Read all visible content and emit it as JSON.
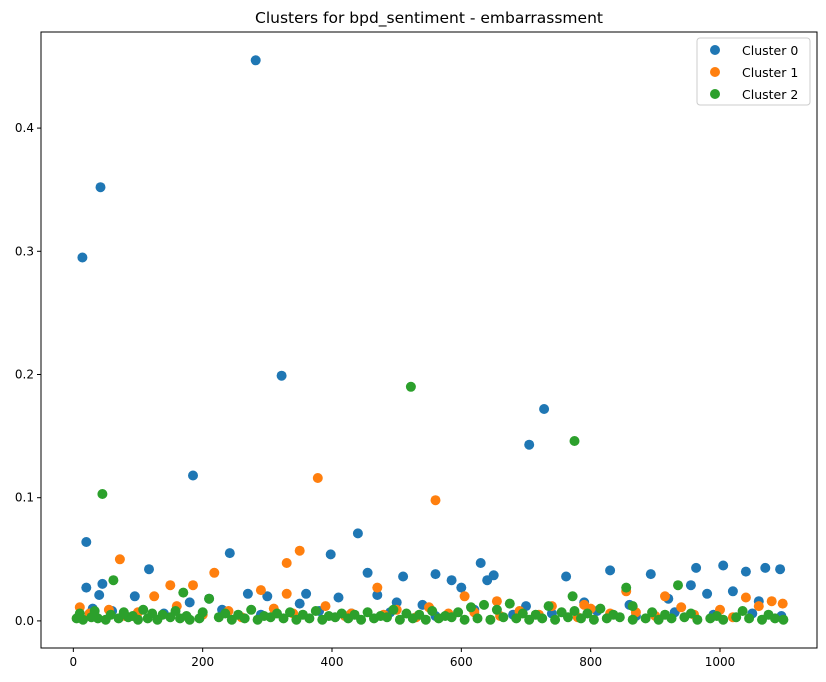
{
  "chart_data": {
    "type": "scatter",
    "title": "Clusters for bpd_sentiment - embarrassment",
    "xlabel": "",
    "ylabel": "",
    "xlim": [
      -50,
      1150
    ],
    "ylim": [
      -0.022,
      0.478
    ],
    "xticks": [
      0,
      200,
      400,
      600,
      800,
      1000
    ],
    "yticks": [
      0.0,
      0.1,
      0.2,
      0.3,
      0.4
    ],
    "ytick_labels": [
      "0.0",
      "0.1",
      "0.2",
      "0.3",
      "0.4"
    ],
    "grid": false,
    "legend_position": "top-right",
    "series": [
      {
        "name": "Cluster 0",
        "color": "#1f77b4",
        "x": [
          14,
          20,
          42,
          282,
          322,
          185,
          45,
          242,
          440,
          398,
          117,
          560,
          630,
          705,
          728,
          762,
          830,
          893,
          963,
          1005,
          1040,
          1070,
          1093,
          300,
          360,
          455,
          510,
          585,
          650,
          955,
          20,
          40,
          95,
          180,
          210,
          270,
          350,
          410,
          470,
          500,
          540,
          600,
          640,
          700,
          790,
          860,
          920,
          980,
          1020,
          1060,
          30,
          60,
          140,
          230,
          290,
          380,
          430,
          490,
          560,
          620,
          680,
          740,
          810,
          870,
          930,
          990,
          1050,
          1095
        ],
        "y": [
          0.295,
          0.064,
          0.352,
          0.455,
          0.199,
          0.118,
          0.03,
          0.055,
          0.071,
          0.054,
          0.042,
          0.038,
          0.047,
          0.143,
          0.172,
          0.036,
          0.041,
          0.038,
          0.043,
          0.045,
          0.04,
          0.043,
          0.042,
          0.02,
          0.022,
          0.039,
          0.036,
          0.033,
          0.037,
          0.029,
          0.027,
          0.021,
          0.02,
          0.015,
          0.018,
          0.022,
          0.014,
          0.019,
          0.021,
          0.015,
          0.013,
          0.027,
          0.033,
          0.012,
          0.015,
          0.013,
          0.018,
          0.022,
          0.024,
          0.016,
          0.01,
          0.008,
          0.006,
          0.009,
          0.005,
          0.008,
          0.006,
          0.007,
          0.004,
          0.009,
          0.005,
          0.006,
          0.008,
          0.004,
          0.007,
          0.005,
          0.006,
          0.004
        ]
      },
      {
        "name": "Cluster 1",
        "color": "#ff7f0e",
        "x": [
          378,
          560,
          72,
          350,
          330,
          218,
          150,
          185,
          125,
          290,
          470,
          330,
          605,
          655,
          790,
          855,
          915,
          1040,
          1080,
          1097,
          10,
          55,
          100,
          160,
          240,
          310,
          390,
          430,
          500,
          550,
          620,
          690,
          740,
          800,
          870,
          940,
          1000,
          1060,
          25,
          80,
          200,
          260,
          340,
          420,
          480,
          530,
          580,
          660,
          720,
          780,
          830,
          900,
          960,
          1020
        ],
        "y": [
          0.116,
          0.098,
          0.05,
          0.057,
          0.047,
          0.039,
          0.029,
          0.029,
          0.02,
          0.025,
          0.027,
          0.022,
          0.02,
          0.016,
          0.013,
          0.024,
          0.02,
          0.019,
          0.016,
          0.014,
          0.011,
          0.009,
          0.007,
          0.012,
          0.008,
          0.01,
          0.012,
          0.006,
          0.009,
          0.011,
          0.007,
          0.008,
          0.012,
          0.01,
          0.007,
          0.011,
          0.009,
          0.012,
          0.006,
          0.004,
          0.005,
          0.003,
          0.006,
          0.004,
          0.005,
          0.003,
          0.006,
          0.004,
          0.005,
          0.003,
          0.006,
          0.004,
          0.005,
          0.003
        ]
      },
      {
        "name": "Cluster 2",
        "color": "#2ca02c",
        "x": [
          45,
          522,
          775,
          62,
          170,
          210,
          855,
          935,
          772,
          5,
          15,
          28,
          38,
          50,
          70,
          85,
          100,
          115,
          130,
          150,
          165,
          180,
          195,
          225,
          245,
          265,
          285,
          305,
          325,
          345,
          365,
          385,
          405,
          425,
          445,
          465,
          485,
          505,
          525,
          545,
          565,
          585,
          605,
          625,
          645,
          665,
          685,
          705,
          725,
          745,
          765,
          785,
          805,
          825,
          845,
          865,
          885,
          905,
          925,
          945,
          965,
          985,
          1005,
          1025,
          1045,
          1065,
          1085,
          1098,
          10,
          33,
          58,
          78,
          92,
          108,
          122,
          138,
          158,
          175,
          200,
          235,
          255,
          275,
          295,
          315,
          335,
          355,
          375,
          395,
          415,
          435,
          455,
          475,
          495,
          515,
          535,
          555,
          575,
          595,
          615,
          635,
          655,
          675,
          695,
          715,
          735,
          755,
          775,
          795,
          815,
          835,
          865,
          895,
          915,
          955,
          995,
          1035,
          1075
        ],
        "y": [
          0.103,
          0.19,
          0.146,
          0.033,
          0.023,
          0.018,
          0.027,
          0.029,
          0.02,
          0.002,
          0.001,
          0.003,
          0.002,
          0.001,
          0.002,
          0.003,
          0.001,
          0.002,
          0.001,
          0.003,
          0.002,
          0.001,
          0.002,
          0.003,
          0.001,
          0.002,
          0.001,
          0.003,
          0.002,
          0.001,
          0.002,
          0.001,
          0.003,
          0.002,
          0.001,
          0.002,
          0.003,
          0.001,
          0.002,
          0.001,
          0.002,
          0.003,
          0.001,
          0.002,
          0.001,
          0.003,
          0.002,
          0.001,
          0.002,
          0.001,
          0.003,
          0.002,
          0.001,
          0.002,
          0.003,
          0.001,
          0.002,
          0.001,
          0.002,
          0.003,
          0.001,
          0.002,
          0.001,
          0.003,
          0.002,
          0.001,
          0.002,
          0.001,
          0.006,
          0.008,
          0.005,
          0.007,
          0.004,
          0.009,
          0.006,
          0.005,
          0.008,
          0.004,
          0.007,
          0.006,
          0.005,
          0.009,
          0.004,
          0.006,
          0.007,
          0.005,
          0.008,
          0.004,
          0.006,
          0.005,
          0.007,
          0.004,
          0.009,
          0.006,
          0.005,
          0.008,
          0.004,
          0.007,
          0.011,
          0.013,
          0.009,
          0.014,
          0.006,
          0.005,
          0.012,
          0.007,
          0.008,
          0.006,
          0.01,
          0.005,
          0.012,
          0.007,
          0.005,
          0.006,
          0.004,
          0.008,
          0.005
        ]
      }
    ]
  }
}
